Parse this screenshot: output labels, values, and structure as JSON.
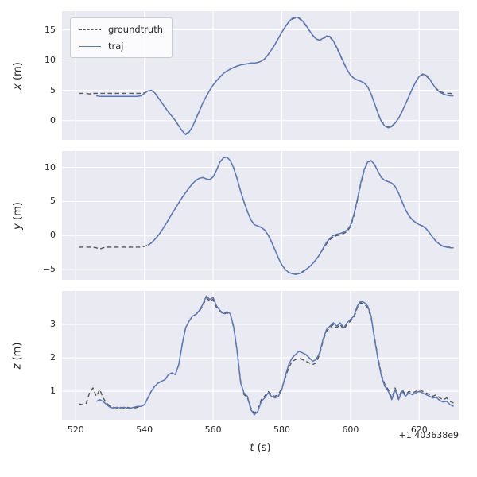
{
  "style": {
    "figure_background": "#ffffff",
    "axes_background": "#eaeaf2",
    "grid_color": "#ffffff",
    "tick_color": "#262626",
    "legend_border": "#cccccc"
  },
  "chart_data": {
    "type": "line",
    "xlabel_var": "t",
    "xlabel_unit": "(s)",
    "x_offset_text": "+1.403638e9",
    "xticks": [
      520,
      540,
      560,
      580,
      600,
      620
    ],
    "xlim": [
      516,
      631.5
    ],
    "legend": [
      {
        "label": "groundtruth",
        "color": "#555555",
        "dash": true
      },
      {
        "label": "traj",
        "color": "#5a78b8",
        "dash": false
      }
    ],
    "t": [
      521,
      522,
      523,
      524,
      525,
      526,
      527,
      528,
      529,
      530,
      531,
      532,
      533,
      534,
      535,
      536,
      537,
      538,
      539,
      540,
      541,
      542,
      543,
      544,
      545,
      546,
      547,
      548,
      549,
      550,
      551,
      552,
      553,
      554,
      555,
      556,
      557,
      558,
      559,
      560,
      561,
      562,
      563,
      564,
      565,
      566,
      567,
      568,
      569,
      570,
      571,
      572,
      573,
      574,
      575,
      576,
      577,
      578,
      579,
      580,
      581,
      582,
      583,
      584,
      585,
      586,
      587,
      588,
      589,
      590,
      591,
      592,
      593,
      594,
      595,
      596,
      597,
      598,
      599,
      600,
      601,
      602,
      603,
      604,
      605,
      606,
      607,
      608,
      609,
      610,
      611,
      612,
      613,
      614,
      615,
      616,
      617,
      618,
      619,
      620,
      621,
      622,
      623,
      624,
      625,
      626,
      627,
      628,
      629,
      630
    ],
    "subplots": [
      {
        "ylabel_var": "x",
        "ylabel_unit": "(m)",
        "yticks": [
          0,
          5,
          10,
          15
        ],
        "ylim": [
          -3.2,
          18.1
        ],
        "series": [
          {
            "name": "groundtruth",
            "color": "#555555",
            "width": 1.4,
            "dash": "5.5,3.5",
            "values": [
              4.5,
              4.5,
              4.5,
              4.4,
              4.5,
              4.5,
              4.5,
              4.5,
              4.5,
              4.5,
              4.5,
              4.5,
              4.5,
              4.5,
              4.5,
              4.5,
              4.5,
              4.5,
              4.5,
              4.6,
              4.9,
              5.0,
              4.6,
              3.8,
              3.0,
              2.2,
              1.4,
              0.7,
              0.0,
              -0.9,
              -1.7,
              -2.2,
              -1.9,
              -1.0,
              0.3,
              1.6,
              2.9,
              4.0,
              5.0,
              5.9,
              6.6,
              7.2,
              7.8,
              8.2,
              8.5,
              8.8,
              9.0,
              9.2,
              9.3,
              9.4,
              9.5,
              9.5,
              9.6,
              9.8,
              10.2,
              10.9,
              11.7,
              12.6,
              13.6,
              14.6,
              15.5,
              16.3,
              16.8,
              17.0,
              16.9,
              16.4,
              15.7,
              14.9,
              14.1,
              13.5,
              13.3,
              13.5,
              13.9,
              13.8,
              13.1,
              12.0,
              10.8,
              9.5,
              8.4,
              7.5,
              7.0,
              6.7,
              6.5,
              6.2,
              5.6,
              4.4,
              2.8,
              1.2,
              -0.1,
              -0.8,
              -1.1,
              -0.9,
              -0.4,
              0.4,
              1.5,
              2.7,
              4.0,
              5.3,
              6.4,
              7.3,
              7.6,
              7.4,
              6.8,
              6.0,
              5.3,
              4.8,
              4.6,
              4.5,
              4.5,
              4.4
            ]
          },
          {
            "name": "traj",
            "color": "#5a78b8",
            "width": 1.5,
            "dash": null,
            "values": [
              null,
              null,
              null,
              null,
              null,
              4.1,
              4.0,
              4.0,
              4.0,
              4.0,
              4.0,
              4.0,
              4.0,
              4.0,
              4.0,
              4.0,
              4.0,
              4.0,
              4.1,
              4.5,
              4.9,
              5.0,
              4.6,
              3.8,
              3.0,
              2.2,
              1.4,
              0.7,
              0.0,
              -0.9,
              -1.7,
              -2.3,
              -1.9,
              -1.0,
              0.3,
              1.6,
              2.9,
              4.0,
              5.0,
              5.9,
              6.6,
              7.2,
              7.8,
              8.2,
              8.5,
              8.8,
              9.0,
              9.2,
              9.3,
              9.4,
              9.5,
              9.5,
              9.6,
              9.8,
              10.2,
              10.9,
              11.7,
              12.6,
              13.6,
              14.6,
              15.5,
              16.3,
              16.9,
              17.1,
              17.0,
              16.5,
              15.8,
              14.9,
              14.1,
              13.5,
              13.3,
              13.6,
              14.0,
              13.9,
              13.2,
              12.1,
              10.9,
              9.6,
              8.4,
              7.5,
              7.0,
              6.7,
              6.5,
              6.2,
              5.6,
              4.4,
              2.8,
              1.2,
              -0.2,
              -0.9,
              -1.2,
              -1.0,
              -0.4,
              0.4,
              1.5,
              2.7,
              4.0,
              5.3,
              6.4,
              7.3,
              7.7,
              7.5,
              6.9,
              6.0,
              5.2,
              4.7,
              4.4,
              4.2,
              4.1,
              4.1
            ]
          }
        ]
      },
      {
        "ylabel_var": "y",
        "ylabel_unit": "(m)",
        "yticks": [
          -5,
          0,
          5,
          10
        ],
        "ylim": [
          -6.5,
          12.4
        ],
        "series": [
          {
            "name": "groundtruth",
            "color": "#555555",
            "width": 1.4,
            "dash": "5.5,3.5",
            "values": [
              -1.7,
              -1.7,
              -1.7,
              -1.7,
              -1.7,
              -1.8,
              -2.0,
              -1.8,
              -1.7,
              -1.7,
              -1.7,
              -1.7,
              -1.7,
              -1.7,
              -1.7,
              -1.7,
              -1.7,
              -1.7,
              -1.7,
              -1.6,
              -1.4,
              -1.1,
              -0.6,
              0.0,
              0.7,
              1.5,
              2.3,
              3.2,
              4.0,
              4.8,
              5.6,
              6.3,
              7.0,
              7.6,
              8.1,
              8.4,
              8.5,
              8.3,
              8.2,
              8.6,
              9.6,
              10.8,
              11.4,
              11.5,
              11.0,
              9.9,
              8.3,
              6.5,
              4.9,
              3.5,
              2.3,
              1.6,
              1.4,
              1.2,
              0.8,
              0.1,
              -0.9,
              -2.1,
              -3.3,
              -4.3,
              -5.0,
              -5.4,
              -5.6,
              -5.6,
              -5.5,
              -5.3,
              -5.0,
              -4.6,
              -4.1,
              -3.5,
              -2.8,
              -2.0,
              -1.2,
              -0.6,
              -0.2,
              0.0,
              0.1,
              0.3,
              0.6,
              1.3,
              2.9,
              5.1,
              7.6,
              9.6,
              10.7,
              11.0,
              10.4,
              9.4,
              8.5,
              8.1,
              7.9,
              7.7,
              7.2,
              6.2,
              5.0,
              3.8,
              2.9,
              2.3,
              1.9,
              1.6,
              1.4,
              1.0,
              0.4,
              -0.3,
              -0.9,
              -1.3,
              -1.6,
              -1.7,
              -1.7,
              -1.8
            ]
          },
          {
            "name": "traj",
            "color": "#5a78b8",
            "width": 1.5,
            "dash": null,
            "values": [
              null,
              null,
              null,
              null,
              null,
              null,
              null,
              null,
              null,
              null,
              null,
              null,
              null,
              null,
              null,
              null,
              null,
              null,
              null,
              null,
              -1.4,
              -1.1,
              -0.6,
              0.0,
              0.7,
              1.5,
              2.3,
              3.2,
              4.0,
              4.8,
              5.6,
              6.3,
              7.0,
              7.6,
              8.1,
              8.4,
              8.5,
              8.3,
              8.2,
              8.6,
              9.6,
              10.8,
              11.4,
              11.5,
              11.0,
              9.9,
              8.3,
              6.5,
              4.9,
              3.5,
              2.3,
              1.6,
              1.4,
              1.2,
              0.8,
              0.1,
              -0.9,
              -2.1,
              -3.3,
              -4.3,
              -5.0,
              -5.4,
              -5.6,
              -5.7,
              -5.6,
              -5.4,
              -5.0,
              -4.6,
              -4.1,
              -3.5,
              -2.8,
              -1.9,
              -1.0,
              -0.4,
              0.0,
              0.2,
              0.3,
              0.5,
              0.8,
              1.5,
              3.1,
              5.3,
              7.8,
              9.7,
              10.8,
              11.0,
              10.4,
              9.4,
              8.5,
              8.1,
              7.9,
              7.7,
              7.2,
              6.2,
              5.0,
              3.8,
              2.9,
              2.3,
              1.9,
              1.6,
              1.4,
              1.0,
              0.4,
              -0.3,
              -0.9,
              -1.3,
              -1.6,
              -1.7,
              -1.8,
              -1.8
            ]
          }
        ]
      },
      {
        "ylabel_var": "z",
        "ylabel_unit": "(m)",
        "yticks": [
          1,
          2,
          3
        ],
        "ylim": [
          0.15,
          4.0
        ],
        "series": [
          {
            "name": "groundtruth",
            "color": "#555555",
            "width": 1.4,
            "dash": "5.5,3.5",
            "values": [
              0.62,
              0.6,
              0.62,
              0.95,
              1.1,
              0.85,
              1.05,
              0.8,
              0.65,
              0.55,
              0.52,
              0.5,
              0.52,
              0.5,
              0.52,
              0.5,
              0.5,
              0.52,
              0.55,
              0.6,
              0.8,
              1.0,
              1.15,
              1.25,
              1.3,
              1.35,
              1.5,
              1.55,
              1.5,
              1.8,
              2.4,
              2.9,
              3.1,
              3.25,
              3.3,
              3.4,
              3.55,
              3.8,
              3.7,
              3.75,
              3.5,
              3.4,
              3.3,
              3.35,
              3.3,
              2.9,
              2.2,
              1.3,
              0.9,
              0.8,
              0.5,
              0.35,
              0.45,
              0.75,
              0.85,
              1.0,
              0.9,
              0.85,
              0.9,
              1.1,
              1.4,
              1.7,
              1.9,
              1.95,
              2.0,
              1.95,
              1.9,
              1.85,
              1.8,
              1.85,
              2.1,
              2.5,
              2.8,
              2.9,
              3.0,
              2.9,
              3.0,
              2.85,
              3.0,
              3.1,
              3.2,
              3.5,
              3.65,
              3.6,
              3.5,
              3.2,
              2.6,
              2.0,
              1.5,
              1.2,
              1.05,
              0.8,
              1.1,
              0.8,
              1.05,
              0.9,
              1.0,
              0.95,
              1.0,
              1.05,
              1.0,
              0.95,
              0.9,
              0.85,
              0.9,
              0.8,
              0.75,
              0.8,
              0.7,
              0.65
            ]
          },
          {
            "name": "traj",
            "color": "#5a78b8",
            "width": 1.5,
            "dash": null,
            "values": [
              null,
              null,
              null,
              null,
              null,
              0.7,
              0.75,
              0.7,
              0.6,
              0.52,
              0.5,
              0.52,
              0.5,
              0.52,
              0.5,
              0.5,
              0.52,
              0.55,
              0.55,
              0.6,
              0.8,
              1.0,
              1.15,
              1.25,
              1.3,
              1.35,
              1.5,
              1.55,
              1.5,
              1.8,
              2.4,
              2.9,
              3.1,
              3.25,
              3.3,
              3.42,
              3.6,
              3.85,
              3.75,
              3.8,
              3.55,
              3.42,
              3.32,
              3.38,
              3.32,
              2.92,
              2.2,
              1.25,
              0.95,
              0.85,
              0.45,
              0.3,
              0.4,
              0.7,
              0.8,
              0.95,
              0.85,
              0.8,
              0.85,
              1.05,
              1.45,
              1.8,
              2.0,
              2.1,
              2.2,
              2.15,
              2.1,
              2.0,
              1.9,
              1.95,
              2.15,
              2.55,
              2.85,
              2.95,
              3.05,
              2.95,
              3.05,
              2.9,
              3.05,
              3.15,
              3.25,
              3.55,
              3.7,
              3.65,
              3.55,
              3.25,
              2.55,
              1.95,
              1.45,
              1.15,
              1.0,
              0.75,
              1.05,
              0.75,
              1.0,
              0.85,
              0.95,
              0.9,
              0.95,
              1.0,
              0.95,
              0.9,
              0.85,
              0.8,
              0.82,
              0.72,
              0.68,
              0.7,
              0.6,
              0.55
            ]
          }
        ]
      }
    ]
  }
}
